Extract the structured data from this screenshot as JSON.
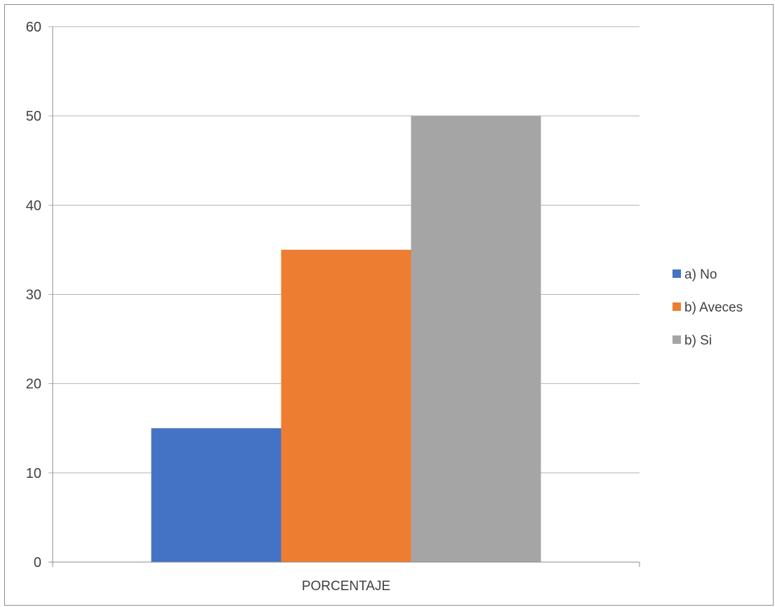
{
  "chart_data": {
    "type": "bar",
    "categories": [
      "PORCENTAJE"
    ],
    "series": [
      {
        "name": "a) No",
        "values": [
          15
        ],
        "color": "#4472C4"
      },
      {
        "name": "b) Aveces",
        "values": [
          35
        ],
        "color": "#ED7D31"
      },
      {
        "name": "b) Si",
        "values": [
          50
        ],
        "color": "#A5A5A5"
      }
    ],
    "title": "",
    "xlabel": "",
    "ylabel": "",
    "ylim": [
      0,
      60
    ],
    "yticks": [
      "0",
      "10",
      "20",
      "30",
      "40",
      "50",
      "60"
    ],
    "grid": true,
    "legend_position": "right"
  }
}
